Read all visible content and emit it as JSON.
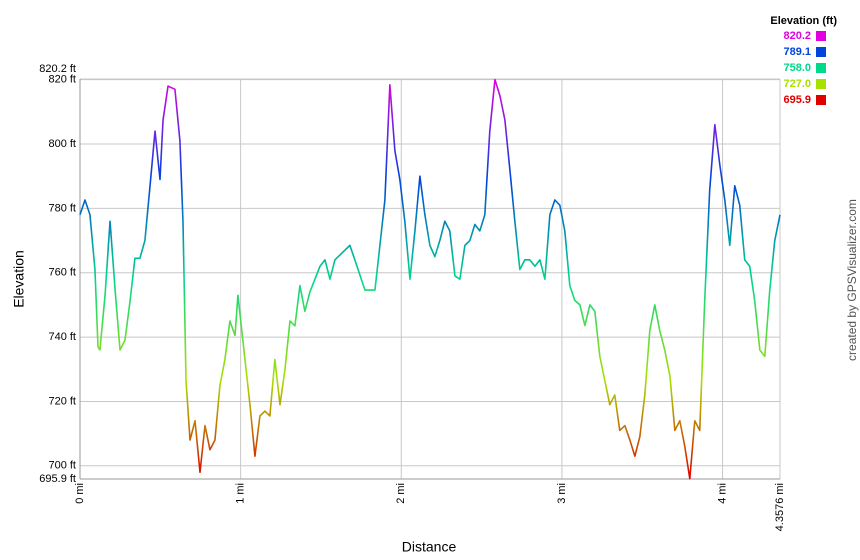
{
  "chart_data": {
    "type": "line",
    "x_label": "Distance",
    "y_label": "Elevation",
    "credit": "created by GPSVisualizer.com",
    "legend_title": "Elevation (ft)",
    "color_scale": [
      {
        "value": 820.2,
        "label": "820.2",
        "color": "#e000e0"
      },
      {
        "value": 789.1,
        "label": "789.1",
        "color": "#0044dd"
      },
      {
        "value": 758.0,
        "label": "758.0",
        "color": "#00d88a"
      },
      {
        "value": 727.0,
        "label": "727.0",
        "color": "#a8e000"
      },
      {
        "value": 695.9,
        "label": "695.9",
        "color": "#e00000"
      }
    ],
    "xlim": [
      0,
      4.3576
    ],
    "xticks": [
      {
        "value": 0,
        "label": "0 mi"
      },
      {
        "value": 1,
        "label": "1 mi"
      },
      {
        "value": 2,
        "label": "2 mi"
      },
      {
        "value": 3,
        "label": "3 mi"
      },
      {
        "value": 4,
        "label": "4 mi"
      },
      {
        "value": 4.3576,
        "label": "4.3576 mi"
      }
    ],
    "ylim": [
      695.9,
      820.2
    ],
    "yticks": [
      {
        "value": 695.9,
        "label": "695.9 ft"
      },
      {
        "value": 700,
        "label": "700 ft"
      },
      {
        "value": 720,
        "label": "720 ft"
      },
      {
        "value": 740,
        "label": "740 ft"
      },
      {
        "value": 760,
        "label": "760 ft"
      },
      {
        "value": 780,
        "label": "780 ft"
      },
      {
        "value": 800,
        "label": "800 ft"
      },
      {
        "value": 820,
        "label": "820 ft"
      },
      {
        "value": 820.2,
        "label": "820.2 ft"
      }
    ],
    "grid": true,
    "x": [
      0,
      0.031,
      0.062,
      0.093,
      0.112,
      0.124,
      0.156,
      0.187,
      0.218,
      0.249,
      0.28,
      0.311,
      0.342,
      0.373,
      0.404,
      0.436,
      0.467,
      0.498,
      0.517,
      0.548,
      0.591,
      0.622,
      0.641,
      0.66,
      0.685,
      0.716,
      0.747,
      0.778,
      0.809,
      0.84,
      0.871,
      0.902,
      0.933,
      0.965,
      0.983,
      1.027,
      1.058,
      1.089,
      1.12,
      1.151,
      1.182,
      1.213,
      1.245,
      1.276,
      1.307,
      1.338,
      1.369,
      1.4,
      1.431,
      1.494,
      1.525,
      1.556,
      1.587,
      1.649,
      1.68,
      1.711,
      1.774,
      1.836,
      1.867,
      1.898,
      1.929,
      1.96,
      1.991,
      2.022,
      2.054,
      2.085,
      2.116,
      2.147,
      2.178,
      2.209,
      2.24,
      2.271,
      2.302,
      2.334,
      2.365,
      2.396,
      2.427,
      2.458,
      2.489,
      2.52,
      2.551,
      2.583,
      2.614,
      2.645,
      2.676,
      2.707,
      2.738,
      2.769,
      2.8,
      2.832,
      2.863,
      2.894,
      2.925,
      2.956,
      2.987,
      3.018,
      3.049,
      3.08,
      3.112,
      3.143,
      3.174,
      3.205,
      3.236,
      3.267,
      3.298,
      3.329,
      3.36,
      3.392,
      3.423,
      3.454,
      3.485,
      3.516,
      3.547,
      3.578,
      3.609,
      3.64,
      3.672,
      3.703,
      3.734,
      3.765,
      3.796,
      3.827,
      3.858,
      3.889,
      3.92,
      3.952,
      3.983,
      4.014,
      4.045,
      4.076,
      4.107,
      4.138,
      4.169,
      4.2,
      4.232,
      4.263,
      4.294,
      4.325,
      4.3576
    ],
    "values": [
      778,
      782.6,
      778,
      761,
      737,
      736,
      753,
      776,
      755,
      736,
      739,
      751,
      764.5,
      764.5,
      770,
      787,
      804,
      789,
      807.5,
      818,
      817,
      801,
      776,
      726.5,
      708,
      714,
      698,
      712.5,
      705,
      708,
      725,
      733,
      745,
      740.5,
      753,
      733,
      719,
      703,
      715.5,
      717,
      715.5,
      733,
      719,
      730,
      745,
      743.5,
      756,
      748,
      754,
      762,
      764,
      758,
      764,
      767,
      768.5,
      764,
      754.6,
      754.6,
      768.5,
      782.6,
      818.4,
      798,
      789,
      776,
      758,
      773,
      790,
      778,
      768.5,
      765,
      770,
      776,
      773,
      759,
      758,
      768.5,
      770,
      775,
      773,
      778,
      804,
      820,
      815,
      807.5,
      792,
      776,
      761,
      764,
      764,
      762,
      764,
      758,
      778,
      782.6,
      781,
      773,
      756,
      751.4,
      750,
      743.6,
      750,
      748,
      734,
      726.5,
      719,
      722,
      711,
      712.5,
      708,
      703,
      709,
      722,
      742,
      750,
      742,
      736,
      728,
      711,
      714,
      706,
      696,
      714,
      711,
      751.4,
      785.7,
      806,
      793.5,
      782.6,
      768.5,
      787,
      781,
      764,
      762,
      751.4,
      736,
      734,
      754.6,
      770,
      778
    ]
  }
}
